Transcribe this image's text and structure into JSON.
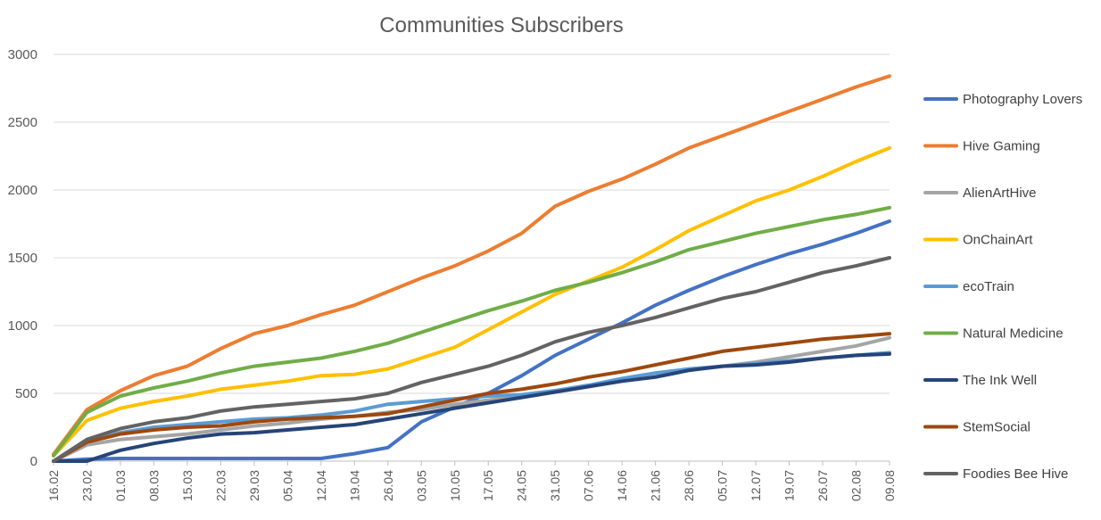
{
  "chart_data": {
    "type": "line",
    "title": "Communities Subscribers",
    "xlabel": "",
    "ylabel": "",
    "ylim": [
      0,
      3000
    ],
    "yticks": [
      0,
      500,
      1000,
      1500,
      2000,
      2500,
      3000
    ],
    "grid": true,
    "legend_position": "right",
    "x": [
      "16.02",
      "23.02",
      "01.03",
      "08.03",
      "15.03",
      "22.03",
      "29.03",
      "05.04",
      "12.04",
      "19.04",
      "26.04",
      "03.05",
      "10.05",
      "17.05",
      "24.05",
      "31.05",
      "07.06",
      "14.06",
      "21.06",
      "28.06",
      "05.07",
      "12.07",
      "19.07",
      "26.07",
      "02.08",
      "09.08"
    ],
    "series": [
      {
        "name": "Photography Lovers",
        "color": "#4472C4",
        "values": [
          0,
          15,
          20,
          20,
          20,
          20,
          20,
          20,
          20,
          55,
          100,
          290,
          400,
          500,
          630,
          780,
          900,
          1020,
          1150,
          1260,
          1360,
          1450,
          1530,
          1600,
          1680,
          1770
        ]
      },
      {
        "name": "Hive Gaming",
        "color": "#ED7D31",
        "values": [
          50,
          380,
          520,
          630,
          700,
          830,
          940,
          1000,
          1080,
          1150,
          1250,
          1350,
          1440,
          1550,
          1680,
          1880,
          1990,
          2080,
          2190,
          2310,
          2400,
          2490,
          2580,
          2670,
          2760,
          2840
        ]
      },
      {
        "name": "AlienArtHive",
        "color": "#A5A5A5",
        "values": [
          0,
          120,
          160,
          180,
          200,
          230,
          260,
          280,
          310,
          330,
          360,
          380,
          420,
          450,
          480,
          510,
          550,
          590,
          630,
          670,
          700,
          730,
          770,
          810,
          850,
          910
        ]
      },
      {
        "name": "OnChainArt",
        "color": "#FFC000",
        "values": [
          40,
          300,
          390,
          440,
          480,
          530,
          560,
          590,
          630,
          640,
          680,
          760,
          840,
          970,
          1100,
          1230,
          1330,
          1430,
          1560,
          1700,
          1810,
          1920,
          2000,
          2100,
          2210,
          2310
        ]
      },
      {
        "name": "ecoTrain",
        "color": "#5B9BD5",
        "values": [
          0,
          140,
          210,
          250,
          270,
          290,
          310,
          320,
          340,
          370,
          420,
          440,
          460,
          480,
          490,
          520,
          560,
          610,
          650,
          680,
          700,
          720,
          740,
          760,
          780,
          800
        ]
      },
      {
        "name": "Natural Medicine",
        "color": "#70AD47",
        "values": [
          40,
          360,
          480,
          540,
          590,
          650,
          700,
          730,
          760,
          810,
          870,
          950,
          1030,
          1110,
          1180,
          1260,
          1320,
          1390,
          1470,
          1560,
          1620,
          1680,
          1730,
          1780,
          1820,
          1870
        ]
      },
      {
        "name": "The Ink Well",
        "color": "#264478",
        "values": [
          0,
          0,
          80,
          130,
          170,
          200,
          210,
          230,
          250,
          270,
          310,
          350,
          390,
          430,
          470,
          510,
          550,
          590,
          620,
          670,
          700,
          710,
          730,
          760,
          780,
          790
        ]
      },
      {
        "name": "StemSocial",
        "color": "#9E480E",
        "values": [
          0,
          140,
          200,
          230,
          250,
          260,
          290,
          310,
          320,
          330,
          350,
          400,
          450,
          500,
          530,
          570,
          620,
          660,
          710,
          760,
          810,
          840,
          870,
          900,
          920,
          940
        ]
      },
      {
        "name": "Foodies Bee Hive",
        "color": "#636363",
        "values": [
          0,
          160,
          240,
          290,
          320,
          370,
          400,
          420,
          440,
          460,
          500,
          580,
          640,
          700,
          780,
          880,
          950,
          1000,
          1060,
          1130,
          1200,
          1250,
          1320,
          1390,
          1440,
          1500
        ]
      }
    ]
  }
}
